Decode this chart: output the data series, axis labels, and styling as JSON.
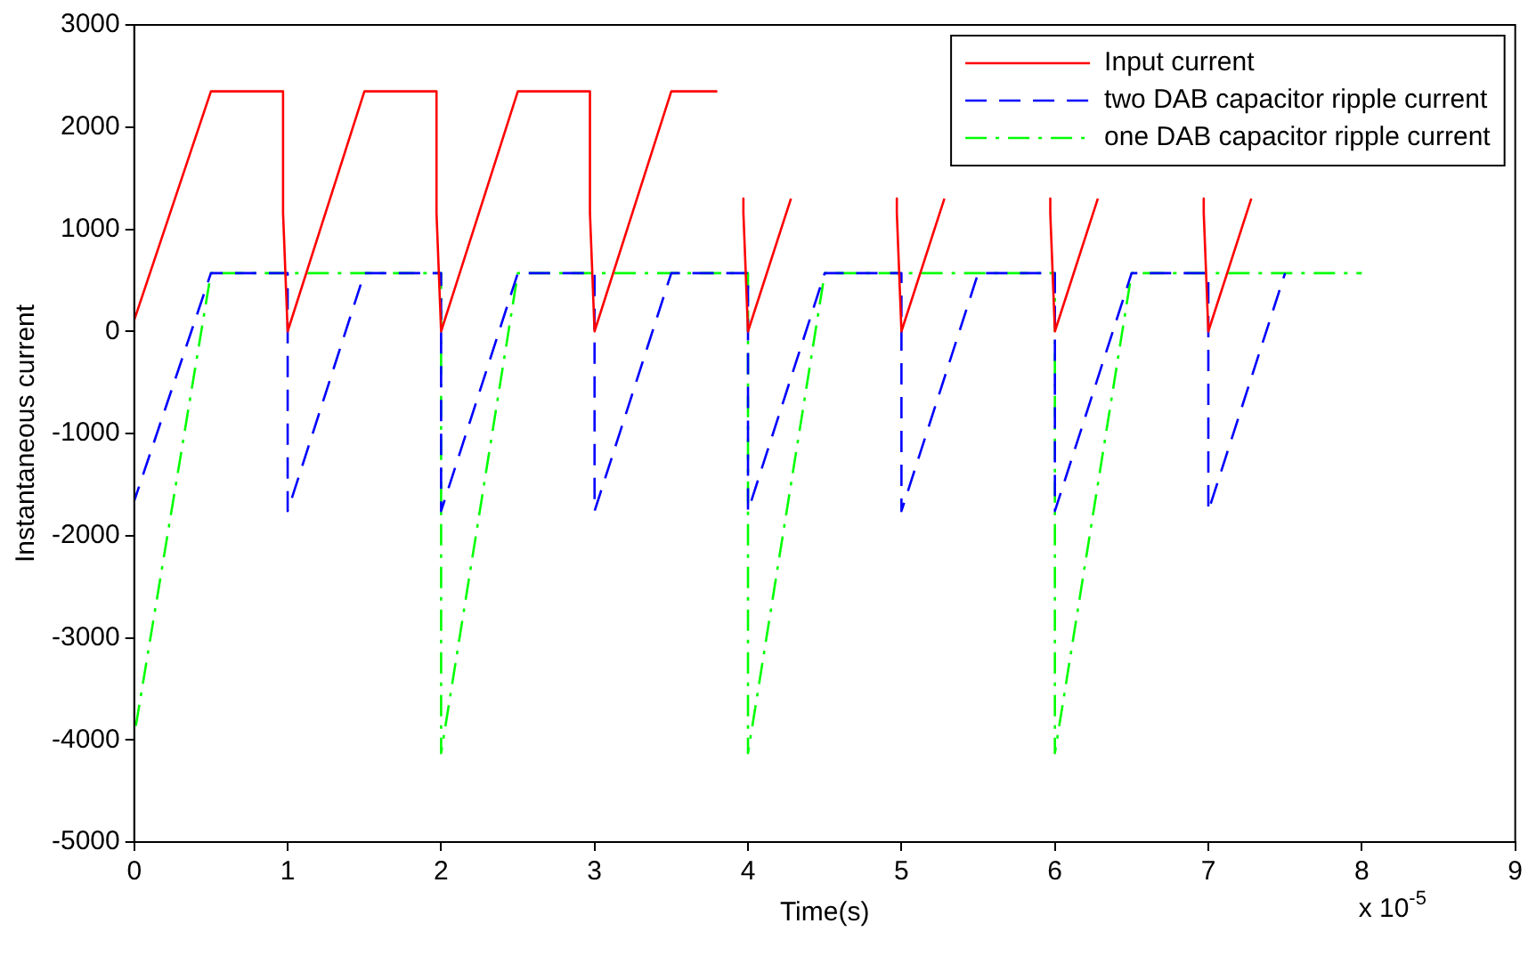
{
  "chart_data": {
    "type": "line",
    "xlabel": "Time(s)",
    "ylabel": "Instantaneous current",
    "annotations": [
      "x 10$^{-5}$"
    ],
    "xlim": [
      0,
      9
    ],
    "xticks": [
      0,
      1,
      2,
      3,
      4,
      5,
      6,
      7,
      8,
      9
    ],
    "ylim": [
      -5000,
      3000
    ],
    "yticks": [
      -5000,
      -4000,
      -3000,
      -2000,
      -1000,
      0,
      1000,
      2000,
      3000
    ],
    "grid": false,
    "legend": "top right",
    "marker": "none",
    "series": [
      {
        "name": "Input current",
        "color": "#ff0000",
        "line_style": "solid",
        "x": [
          0,
          0.5,
          0.97,
          0.97,
          1,
          1.5,
          1.97,
          1.97,
          2,
          2.5,
          2.97,
          2.97,
          3,
          3.5,
          3.8,
          3.85,
          3.97,
          3.97,
          4,
          4.28,
          4.35,
          4.97,
          4.97,
          5,
          5.28,
          5.35,
          5.97,
          5.97,
          6,
          6.28,
          6.35,
          6.97,
          6.97,
          7,
          7.28
        ],
        "values": [
          110,
          2350,
          2350,
          1160,
          0,
          2350,
          2350,
          1160,
          0,
          2350,
          2350,
          1160,
          0,
          2350,
          2350,
          null,
          1300,
          1160,
          0,
          1300,
          null,
          1300,
          1160,
          0,
          1300,
          null,
          1300,
          1160,
          0,
          1300,
          null,
          1300,
          1160,
          0,
          1300
        ]
      },
      {
        "name": "two DAB capacitor ripple current",
        "color": "#0000ff",
        "line_style": "dashed",
        "x": [
          0,
          0.5,
          1,
          1,
          1.5,
          2,
          2,
          2.5,
          3,
          3,
          3.5,
          4,
          4,
          4.5,
          5,
          5,
          5.5,
          6,
          6,
          6.5,
          7,
          7,
          7.5
        ],
        "values": [
          -1660,
          570,
          570,
          -1760,
          570,
          570,
          -1760,
          570,
          570,
          -1760,
          570,
          570,
          -1760,
          570,
          570,
          -1760,
          570,
          570,
          -1760,
          570,
          570,
          -1760,
          570
        ]
      },
      {
        "name": "one DAB capacitor ripple current",
        "color": "#00ff00",
        "line_style": "dashdot",
        "x": [
          0,
          0.5,
          2,
          2,
          2.5,
          4,
          4,
          4.5,
          6,
          6,
          6.5,
          8
        ],
        "values": [
          -3960,
          570,
          570,
          -4130,
          570,
          570,
          -4130,
          570,
          570,
          -4130,
          570,
          570
        ]
      }
    ]
  }
}
